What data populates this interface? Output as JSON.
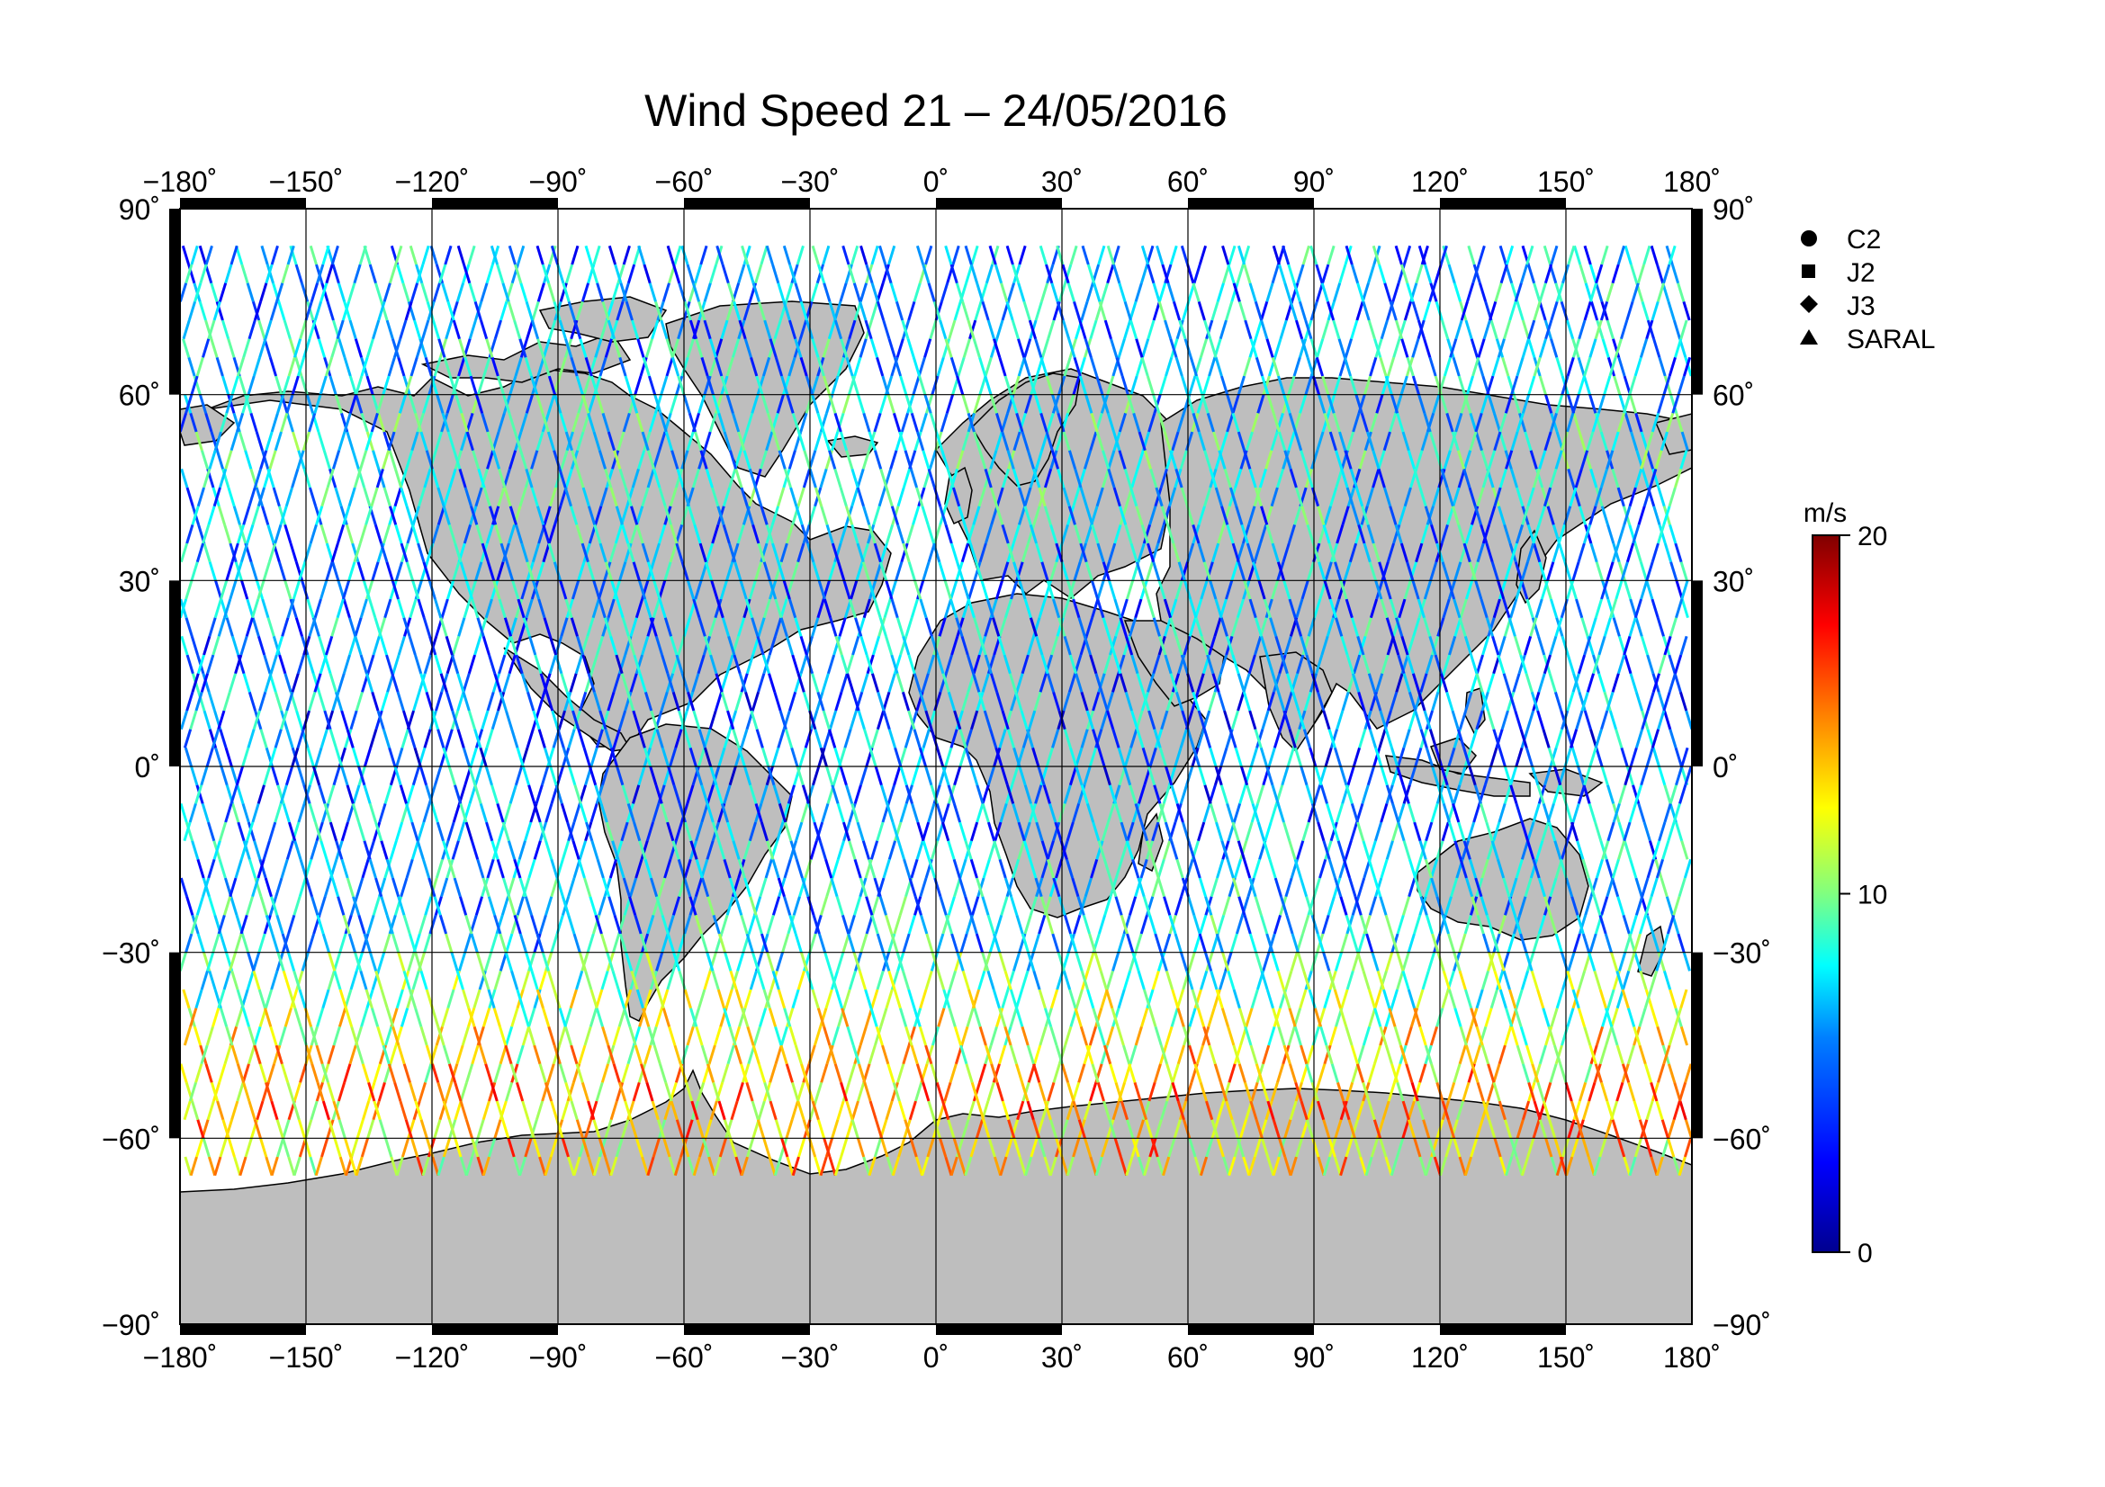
{
  "title": "Wind Speed 21 – 24/05/2016",
  "map": {
    "lon_range": [
      -180,
      180
    ],
    "lat_range": [
      -90,
      90
    ],
    "lon_ticks": [
      -180,
      -150,
      -120,
      -90,
      -60,
      -30,
      0,
      30,
      60,
      90,
      120,
      150,
      180
    ],
    "lat_ticks": [
      90,
      60,
      30,
      0,
      -30,
      -60,
      -90
    ],
    "lon_tick_labels": [
      "−180˚",
      "−150˚",
      "−120˚",
      "−90˚",
      "−60˚",
      "−30˚",
      "0˚",
      "30˚",
      "60˚",
      "90˚",
      "120˚",
      "150˚",
      "180˚"
    ],
    "lat_tick_labels": [
      "90˚",
      "60˚",
      "30˚",
      "0˚",
      "−30˚",
      "−60˚",
      "−90˚"
    ],
    "land_color": "#bebebe",
    "ocean_color": "#ffffff",
    "grid": true
  },
  "legend": {
    "items": [
      {
        "marker": "circle",
        "label": "C2"
      },
      {
        "marker": "square",
        "label": "J2"
      },
      {
        "marker": "diamond",
        "label": "J3"
      },
      {
        "marker": "triangle",
        "label": "SARAL"
      }
    ]
  },
  "colorbar": {
    "unit": "m/s",
    "min": 0,
    "max": 20,
    "tick_values": [
      20,
      10,
      0
    ],
    "tick_labels": [
      "20",
      "10",
      "0"
    ],
    "colormap": [
      "#00008f",
      "#0000ff",
      "#0080ff",
      "#00ffff",
      "#80ff80",
      "#ffff00",
      "#ff8000",
      "#ff0000",
      "#800000"
    ]
  },
  "tracks": {
    "lat_min": -66,
    "lat_max": 82,
    "wind_by_latitude": [
      {
        "lat": -66,
        "speed": 13
      },
      {
        "lat": -55,
        "speed": 14
      },
      {
        "lat": -42,
        "speed": 11
      },
      {
        "lat": -30,
        "speed": 7
      },
      {
        "lat": 0,
        "speed": 5
      },
      {
        "lat": 30,
        "speed": 6
      },
      {
        "lat": 50,
        "speed": 7
      },
      {
        "lat": 70,
        "speed": 6
      }
    ]
  }
}
